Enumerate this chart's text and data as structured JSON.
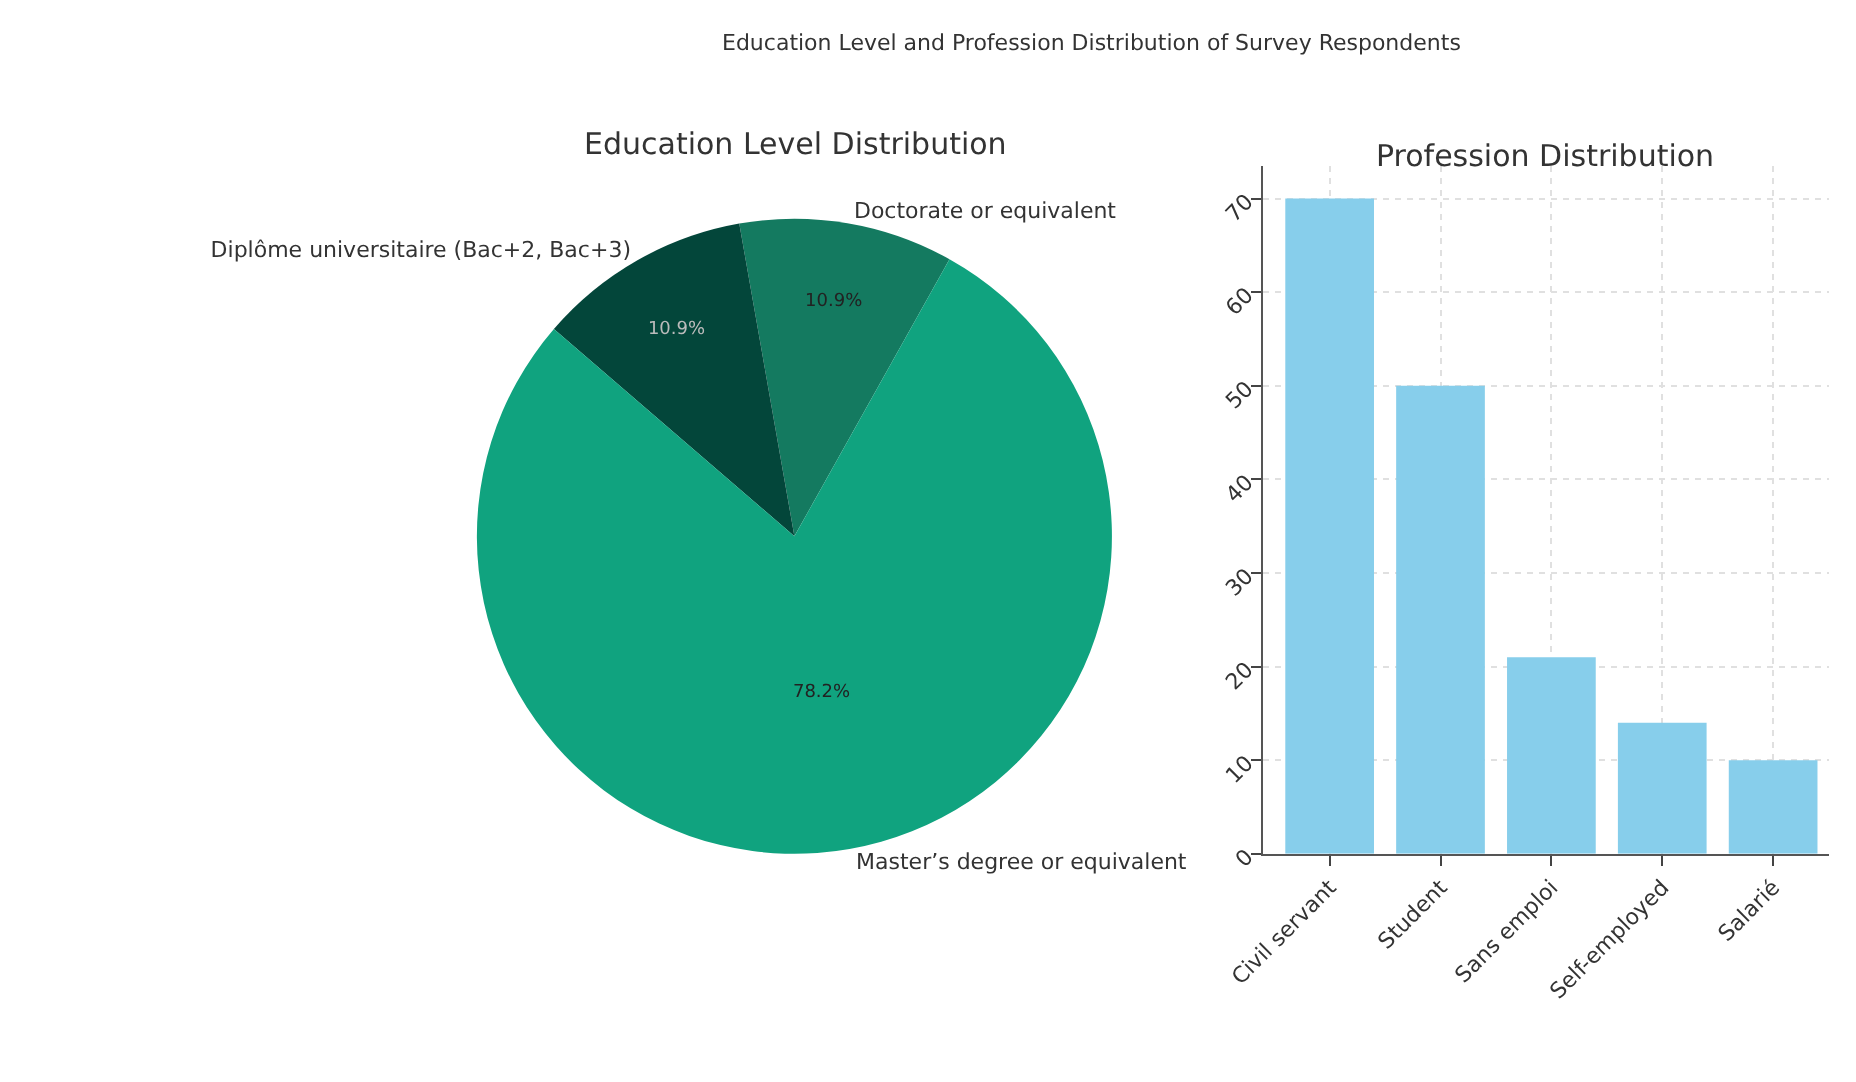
{
  "chart_data": [
    {
      "type": "pie",
      "title": "Education Level Distribution",
      "annotations": [
        "Education Level and Profession Distribution of Survey Respondents"
      ],
      "categories": [
        "Doctorate or equivalent",
        "Diplôme universitaire (Bac+2, Bac+3)",
        "Master’s degree or equivalent"
      ],
      "values": [
        10.9,
        10.9,
        78.2
      ],
      "colors": [
        "#147a60",
        "#03463a",
        "#10a37f"
      ],
      "value_labels": [
        "10.9%",
        "10.9%",
        "78.2%"
      ],
      "legend": false
    },
    {
      "type": "bar",
      "title": "Profession Distribution",
      "categories": [
        "Civil servant",
        "Student",
        "Sans emploi",
        "Self-employed",
        "Salarié"
      ],
      "values": [
        70,
        50,
        21,
        14,
        10
      ],
      "color": "#87ceeb",
      "ylim": [
        0,
        73.5
      ],
      "yticks": [
        0,
        10,
        20,
        30,
        40,
        50,
        60,
        70
      ],
      "grid": true,
      "legend": false
    }
  ]
}
